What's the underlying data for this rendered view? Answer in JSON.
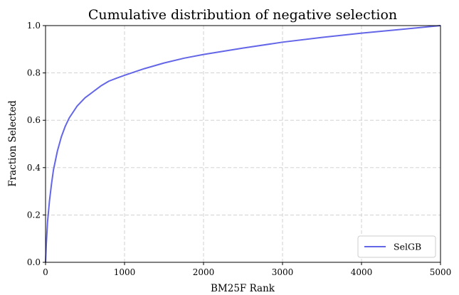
{
  "chart_data": {
    "type": "line",
    "title": "Cumulative distribution of negative selection",
    "xlabel": "BM25F Rank",
    "ylabel": "Fraction Selected",
    "xlim": [
      0,
      5000
    ],
    "ylim": [
      0.0,
      1.0
    ],
    "x_ticks": [
      "0",
      "1000",
      "2000",
      "3000",
      "4000",
      "5000"
    ],
    "y_ticks": [
      "0.0",
      "0.2",
      "0.4",
      "0.6",
      "0.8",
      "1.0"
    ],
    "grid": true,
    "legend_position": "bottom-right",
    "series": [
      {
        "name": "SelGB",
        "color": "#6466e8",
        "x": [
          0,
          10,
          25,
          50,
          75,
          100,
          150,
          200,
          250,
          300,
          400,
          500,
          600,
          700,
          800,
          900,
          1000,
          1250,
          1500,
          1750,
          2000,
          2500,
          3000,
          3500,
          4000,
          4500,
          5000
        ],
        "y": [
          0.0,
          0.08,
          0.17,
          0.26,
          0.33,
          0.39,
          0.47,
          0.53,
          0.575,
          0.61,
          0.66,
          0.695,
          0.72,
          0.745,
          0.765,
          0.778,
          0.79,
          0.818,
          0.842,
          0.862,
          0.878,
          0.905,
          0.93,
          0.95,
          0.968,
          0.984,
          1.0
        ]
      }
    ]
  }
}
